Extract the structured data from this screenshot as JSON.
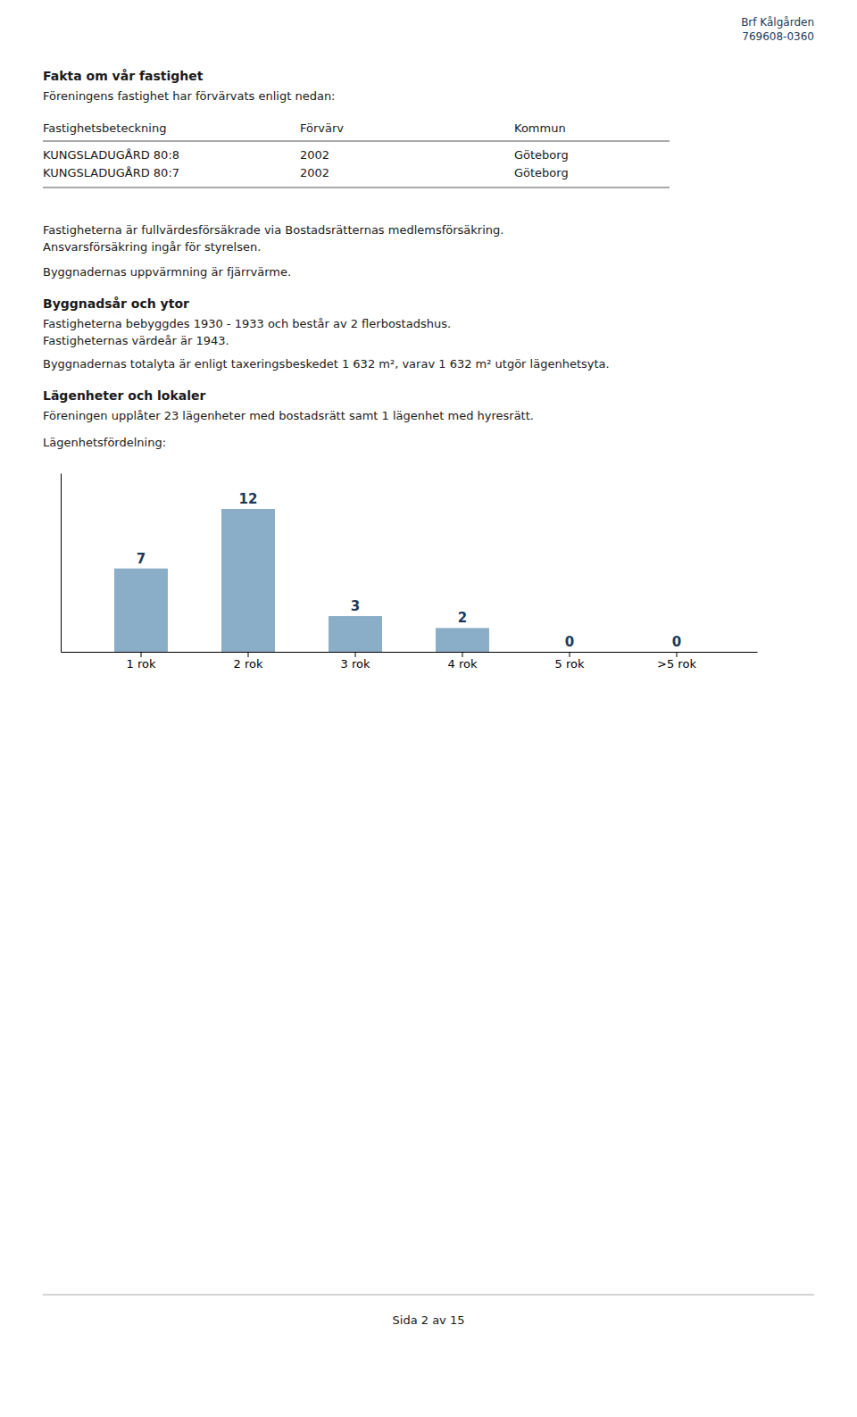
{
  "page": {
    "header": [
      "Brf Kålgården",
      "769608-0360"
    ],
    "section1": {
      "title": "Fakta om vår fastighet",
      "subtitle": "Föreningens fastighet har förvärvats enligt nedan:",
      "table": {
        "headers": [
          "Fastighetsbeteckning",
          "Förvärv",
          "Kommun"
        ],
        "rows": [
          [
            "KUNGSLADUGÅRD 80:8",
            "2002",
            "Göteborg"
          ],
          [
            "KUNGSLADUGÅRD 80:7",
            "2002",
            "Göteborg"
          ]
        ]
      },
      "paragraphs": [
        "Fastigheterna är fullvärdesförsäkrade via Bostadsrätternas medlemsförsäkring.",
        "Ansvarsförsäkring ingår för styrelsen.",
        "Byggnadernas uppvärmning är fjärrvärme."
      ]
    },
    "section2": {
      "title": "Byggnadsår och ytor",
      "paragraphs": [
        "Fastigheterna bebyggdes 1930 - 1933 och består av 2 flerbostadshus.",
        "Fastigheternas värdeår är 1943.",
        "Byggnadernas totalyta är enligt taxeringsbeskedet 1 632 m², varav 1 632 m² utgör lägenhetsyta."
      ]
    },
    "section3": {
      "title": "Lägenheter och lokaler",
      "paragraphs": [
        "Föreningen upplåter 23 lägenheter med bostadsrätt samt 1 lägenhet med hyresrätt."
      ]
    },
    "footer": "Sida 2 av 15"
  },
  "chart_data": {
    "type": "bar",
    "title": "Lägenhetsfördelning:",
    "categories": [
      "1 rok",
      "2 rok",
      "3 rok",
      "4 rok",
      "5 rok",
      ">5 rok"
    ],
    "values": [
      7,
      12,
      3,
      2,
      0,
      0
    ],
    "color": "#8BAEC8",
    "ylim": [
      0,
      15
    ],
    "data_labels": true,
    "tick_labels": "x"
  }
}
